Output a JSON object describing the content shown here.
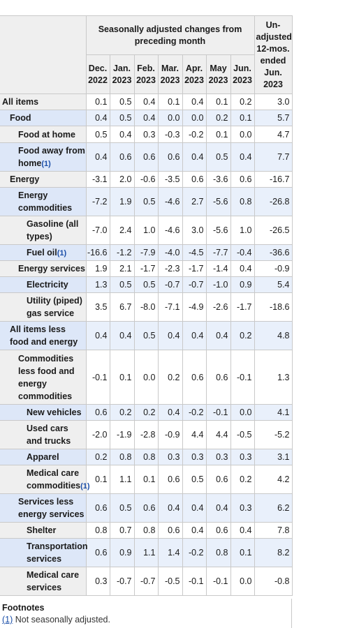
{
  "header": {
    "group_label": "Seasonally adjusted changes from preceding month",
    "unadjusted_label": "Un-adjusted 12-mos. ended Jun. 2023",
    "months": [
      {
        "month": "Dec.",
        "year": "2022"
      },
      {
        "month": "Jan.",
        "year": "2023"
      },
      {
        "month": "Feb.",
        "year": "2023"
      },
      {
        "month": "Mar.",
        "year": "2023"
      },
      {
        "month": "Apr.",
        "year": "2023"
      },
      {
        "month": "May",
        "year": "2023"
      },
      {
        "month": "Jun.",
        "year": "2023"
      }
    ]
  },
  "rows": [
    {
      "label": "All items",
      "level": 0,
      "fn": "",
      "values": [
        "0.1",
        "0.5",
        "0.4",
        "0.1",
        "0.4",
        "0.1",
        "0.2"
      ],
      "unadj": "3.0"
    },
    {
      "label": "Food",
      "level": 1,
      "fn": "",
      "values": [
        "0.4",
        "0.5",
        "0.4",
        "0.0",
        "0.0",
        "0.2",
        "0.1"
      ],
      "unadj": "5.7"
    },
    {
      "label": "Food at home",
      "level": 2,
      "fn": "",
      "values": [
        "0.5",
        "0.4",
        "0.3",
        "-0.3",
        "-0.2",
        "0.1",
        "0.0"
      ],
      "unadj": "4.7"
    },
    {
      "label": "Food away from home",
      "level": 2,
      "fn": "(1)",
      "values": [
        "0.4",
        "0.6",
        "0.6",
        "0.6",
        "0.4",
        "0.5",
        "0.4"
      ],
      "unadj": "7.7"
    },
    {
      "label": "Energy",
      "level": 1,
      "fn": "",
      "values": [
        "-3.1",
        "2.0",
        "-0.6",
        "-3.5",
        "0.6",
        "-3.6",
        "0.6"
      ],
      "unadj": "-16.7"
    },
    {
      "label": "Energy commodities",
      "level": 2,
      "fn": "",
      "values": [
        "-7.2",
        "1.9",
        "0.5",
        "-4.6",
        "2.7",
        "-5.6",
        "0.8"
      ],
      "unadj": "-26.8"
    },
    {
      "label": "Gasoline (all types)",
      "level": 3,
      "fn": "",
      "values": [
        "-7.0",
        "2.4",
        "1.0",
        "-4.6",
        "3.0",
        "-5.6",
        "1.0"
      ],
      "unadj": "-26.5"
    },
    {
      "label": "Fuel oil",
      "level": 3,
      "fn": "(1)",
      "values": [
        "-16.6",
        "-1.2",
        "-7.9",
        "-4.0",
        "-4.5",
        "-7.7",
        "-0.4"
      ],
      "unadj": "-36.6"
    },
    {
      "label": "Energy services",
      "level": 2,
      "fn": "",
      "values": [
        "1.9",
        "2.1",
        "-1.7",
        "-2.3",
        "-1.7",
        "-1.4",
        "0.4"
      ],
      "unadj": "-0.9"
    },
    {
      "label": "Electricity",
      "level": 3,
      "fn": "",
      "values": [
        "1.3",
        "0.5",
        "0.5",
        "-0.7",
        "-0.7",
        "-1.0",
        "0.9"
      ],
      "unadj": "5.4"
    },
    {
      "label": "Utility (piped) gas service",
      "level": 3,
      "fn": "",
      "values": [
        "3.5",
        "6.7",
        "-8.0",
        "-7.1",
        "-4.9",
        "-2.6",
        "-1.7"
      ],
      "unadj": "-18.6"
    },
    {
      "label": "All items less food and energy",
      "level": 1,
      "fn": "",
      "values": [
        "0.4",
        "0.4",
        "0.5",
        "0.4",
        "0.4",
        "0.4",
        "0.2"
      ],
      "unadj": "4.8"
    },
    {
      "label": "Commodities less food and energy commodities",
      "level": 2,
      "fn": "",
      "values": [
        "-0.1",
        "0.1",
        "0.0",
        "0.2",
        "0.6",
        "0.6",
        "-0.1"
      ],
      "unadj": "1.3"
    },
    {
      "label": "New vehicles",
      "level": 3,
      "fn": "",
      "values": [
        "0.6",
        "0.2",
        "0.2",
        "0.4",
        "-0.2",
        "-0.1",
        "0.0"
      ],
      "unadj": "4.1"
    },
    {
      "label": "Used cars and trucks",
      "level": 3,
      "fn": "",
      "values": [
        "-2.0",
        "-1.9",
        "-2.8",
        "-0.9",
        "4.4",
        "4.4",
        "-0.5"
      ],
      "unadj": "-5.2"
    },
    {
      "label": "Apparel",
      "level": 3,
      "fn": "",
      "values": [
        "0.2",
        "0.8",
        "0.8",
        "0.3",
        "0.3",
        "0.3",
        "0.3"
      ],
      "unadj": "3.1"
    },
    {
      "label": "Medical care commodities",
      "level": 3,
      "fn": "(1)",
      "values": [
        "0.1",
        "1.1",
        "0.1",
        "0.6",
        "0.5",
        "0.6",
        "0.2"
      ],
      "unadj": "4.2"
    },
    {
      "label": "Services less energy services",
      "level": 2,
      "fn": "",
      "values": [
        "0.6",
        "0.5",
        "0.6",
        "0.4",
        "0.4",
        "0.4",
        "0.3"
      ],
      "unadj": "6.2"
    },
    {
      "label": "Shelter",
      "level": 3,
      "fn": "",
      "values": [
        "0.8",
        "0.7",
        "0.8",
        "0.6",
        "0.4",
        "0.6",
        "0.4"
      ],
      "unadj": "7.8"
    },
    {
      "label": "Transportation services",
      "level": 3,
      "fn": "",
      "values": [
        "0.6",
        "0.9",
        "1.1",
        "1.4",
        "-0.2",
        "0.8",
        "0.1"
      ],
      "unadj": "8.2"
    },
    {
      "label": "Medical care services",
      "level": 3,
      "fn": "",
      "values": [
        "0.3",
        "-0.7",
        "-0.7",
        "-0.5",
        "-0.1",
        "-0.1",
        "0.0"
      ],
      "unadj": "-0.8"
    }
  ],
  "footnotes": {
    "title": "Footnotes",
    "items": [
      {
        "ref": "(1)",
        "text": " Not seasonally adjusted."
      }
    ]
  },
  "colors": {
    "header_bg": "#efefef",
    "alt_row_bg": "#e9f0fb",
    "link": "#1a4ea8"
  }
}
